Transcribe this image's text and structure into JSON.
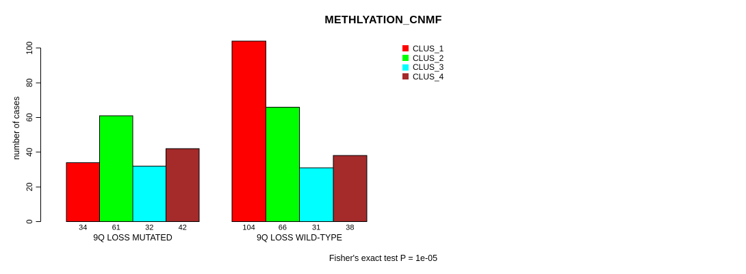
{
  "chart_data": {
    "type": "bar",
    "title": "METHLYATION_CNMF",
    "ylabel": "number of cases",
    "xlabel": "",
    "ylim": [
      0,
      100
    ],
    "yticks": [
      0,
      20,
      40,
      60,
      80,
      100
    ],
    "grid": false,
    "categories": [
      "9Q LOSS MUTATED",
      "9Q LOSS WILD-TYPE"
    ],
    "series": [
      {
        "name": "CLUS_1",
        "color": "#FF0000",
        "values": [
          34,
          104
        ]
      },
      {
        "name": "CLUS_2",
        "color": "#00FF00",
        "values": [
          61,
          66
        ]
      },
      {
        "name": "CLUS_3",
        "color": "#00FFFF",
        "values": [
          32,
          31
        ]
      },
      {
        "name": "CLUS_4",
        "color": "#A52A2A",
        "values": [
          42,
          38
        ]
      }
    ],
    "bar_value_labels_shown": true,
    "legend_position": "top-right",
    "annotation": "Fisher's exact test P = 1e-05",
    "axis_color": "#000000",
    "bar_border_color": "#000000"
  }
}
